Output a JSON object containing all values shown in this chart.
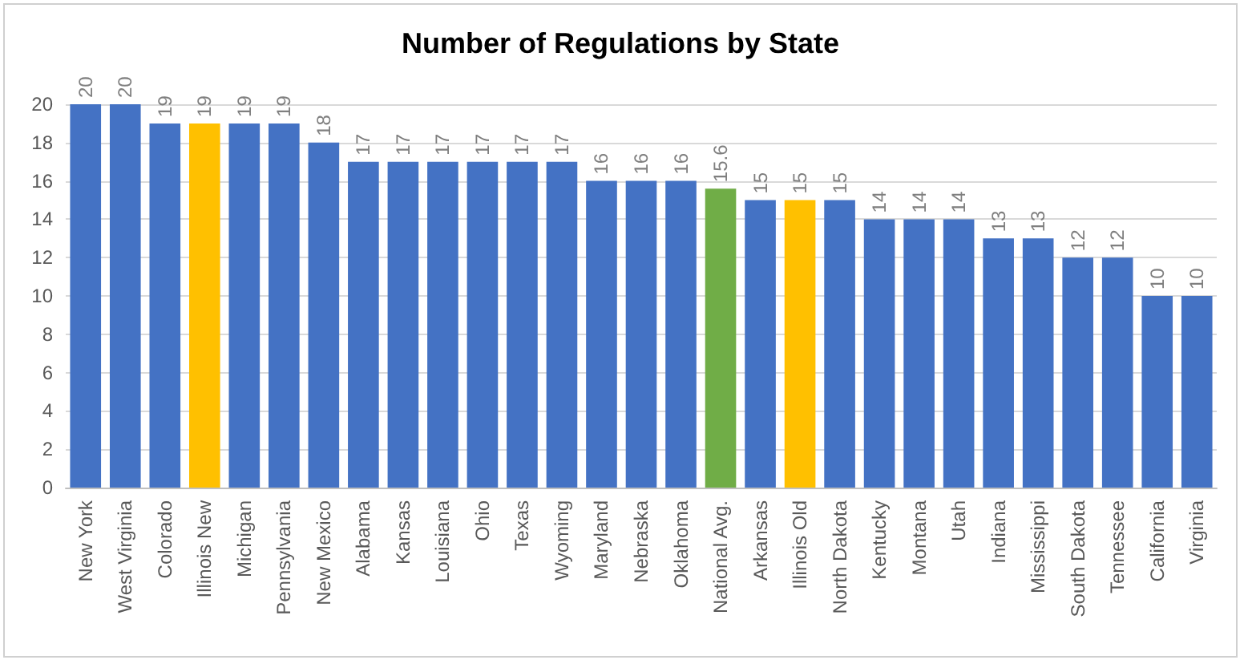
{
  "chart_data": {
    "type": "bar",
    "title": "Number of Regulations by State",
    "categories": [
      "New York",
      "West Virginia",
      "Colorado",
      "Illinois New",
      "Michigan",
      "Pennsylvania",
      "New Mexico",
      "Alabama",
      "Kansas",
      "Louisiana",
      "Ohio",
      "Texas",
      "Wyoming",
      "Maryland",
      "Nebraska",
      "Oklahoma",
      "National Avg.",
      "Arkansas",
      "Illinois Old",
      "North Dakota",
      "Kentucky",
      "Montana",
      "Utah",
      "Indiana",
      "Mississippi",
      "South Dakota",
      "Tennessee",
      "California",
      "Virginia"
    ],
    "values": [
      20,
      20,
      19,
      19,
      19,
      19,
      18,
      17,
      17,
      17,
      17,
      17,
      17,
      16,
      16,
      16,
      15.6,
      15,
      15,
      15,
      14,
      14,
      14,
      13,
      13,
      12,
      12,
      10,
      10
    ],
    "colors": [
      "#4472c4",
      "#4472c4",
      "#4472c4",
      "#ffc000",
      "#4472c4",
      "#4472c4",
      "#4472c4",
      "#4472c4",
      "#4472c4",
      "#4472c4",
      "#4472c4",
      "#4472c4",
      "#4472c4",
      "#4472c4",
      "#4472c4",
      "#4472c4",
      "#70ad47",
      "#4472c4",
      "#ffc000",
      "#4472c4",
      "#4472c4",
      "#4472c4",
      "#4472c4",
      "#4472c4",
      "#4472c4",
      "#4472c4",
      "#4472c4",
      "#4472c4",
      "#4472c4"
    ],
    "ylim": [
      0,
      20
    ],
    "yticks": [
      0,
      2,
      4,
      6,
      8,
      10,
      12,
      14,
      16,
      18,
      20
    ],
    "grid": "y",
    "data_labels": true
  }
}
